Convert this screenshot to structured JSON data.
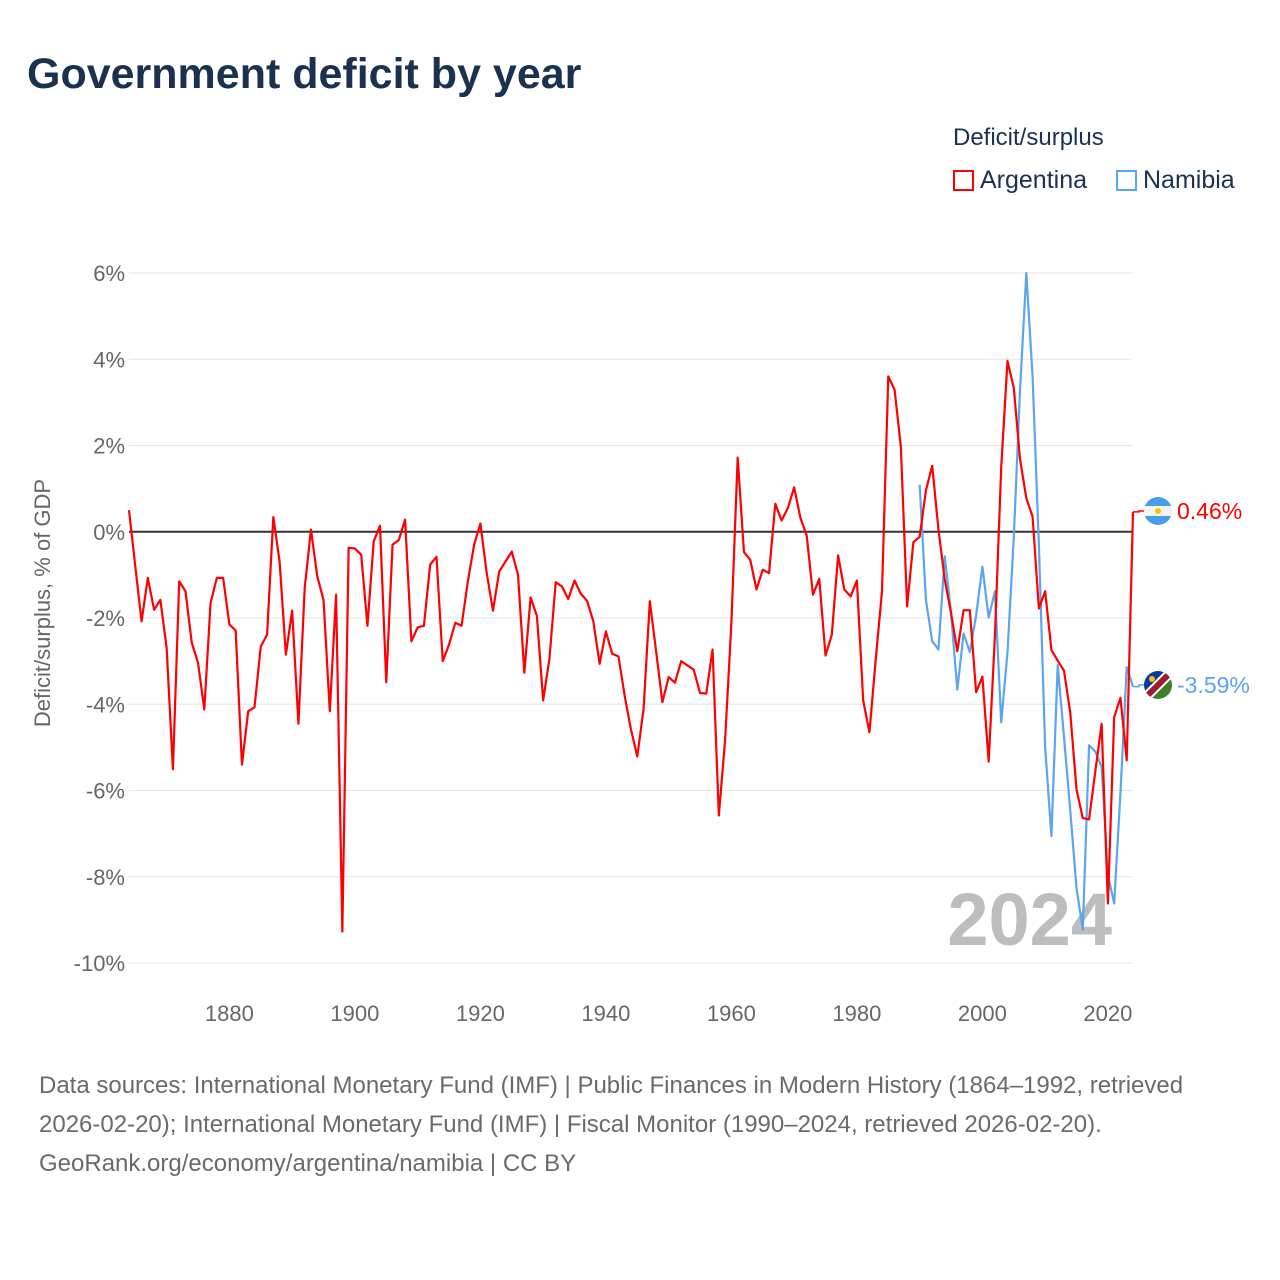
{
  "title": "Government deficit by year",
  "legend": {
    "title": "Deficit/surplus",
    "items": [
      {
        "label": "Argentina",
        "color": "#ff0000"
      },
      {
        "label": "Namibia",
        "color": "#5aa5ef"
      }
    ]
  },
  "chart_data": {
    "type": "line",
    "title": "Government deficit by year",
    "xlabel": "",
    "ylabel": "Deficit/surplus, % of GDP",
    "xlim": [
      1864,
      2024
    ],
    "ylim": [
      -10,
      6
    ],
    "yticks": [
      6,
      4,
      2,
      0,
      -2,
      -4,
      -6,
      -8,
      -10
    ],
    "ytick_labels": [
      "6%",
      "4%",
      "2%",
      "0%",
      "-2%",
      "-4%",
      "-6%",
      "-8%",
      "-10%"
    ],
    "xticks": [
      1880,
      1900,
      1920,
      1940,
      1960,
      1980,
      2000,
      2020
    ],
    "xtick_labels": [
      "1880",
      "1900",
      "1920",
      "1940",
      "1960",
      "1980",
      "2000",
      "2020"
    ],
    "grid": true,
    "legend_position": "top-right",
    "year_watermark": "2024",
    "series": [
      {
        "name": "Argentina",
        "color": "#ff0000",
        "start_year": 1864,
        "end_label": "0.46%",
        "values": [
          0.5,
          -0.8,
          -2.08,
          -1.07,
          -1.81,
          -1.58,
          -2.7,
          -5.51,
          -1.15,
          -1.38,
          -2.57,
          -3.04,
          -4.12,
          -1.65,
          -1.07,
          -1.07,
          -2.15,
          -2.29,
          -5.4,
          -4.16,
          -4.07,
          -2.66,
          -2.39,
          0.34,
          -0.69,
          -2.85,
          -1.83,
          -4.45,
          -1.3,
          0.05,
          -1.03,
          -1.58,
          -4.16,
          -1.46,
          -9.27,
          -0.37,
          -0.39,
          -0.53,
          -2.18,
          -0.22,
          0.14,
          -3.49,
          -0.3,
          -0.19,
          0.28,
          -2.54,
          -2.22,
          -2.18,
          -0.76,
          -0.58,
          -3.0,
          -2.62,
          -2.11,
          -2.18,
          -1.15,
          -0.3,
          0.19,
          -0.95,
          -1.83,
          -0.92,
          -0.69,
          -0.46,
          -1.0,
          -3.27,
          -1.52,
          -1.95,
          -3.91,
          -2.95,
          -1.17,
          -1.27,
          -1.56,
          -1.13,
          -1.44,
          -1.6,
          -2.08,
          -3.06,
          -2.31,
          -2.83,
          -2.89,
          -3.81,
          -4.59,
          -5.21,
          -4.12,
          -1.61,
          -2.77,
          -3.95,
          -3.37,
          -3.5,
          -3.0,
          -3.1,
          -3.2,
          -3.74,
          -3.75,
          -2.73,
          -6.58,
          -4.82,
          -2.11,
          1.72,
          -0.47,
          -0.65,
          -1.34,
          -0.88,
          -0.96,
          0.65,
          0.26,
          0.55,
          1.03,
          0.32,
          -0.09,
          -1.46,
          -1.09,
          -2.87,
          -2.39,
          -0.55,
          -1.34,
          -1.5,
          -1.13,
          -3.91,
          -4.65,
          -2.96,
          -1.38,
          3.6,
          3.3,
          1.98,
          -1.73,
          -0.24,
          -0.12,
          0.96,
          1.53,
          0.05,
          -1.11,
          -1.88,
          -2.77,
          -1.82,
          -1.82,
          -3.72,
          -3.36,
          -5.33,
          -2.4,
          1.5,
          3.96,
          3.34,
          1.68,
          0.78,
          0.35,
          -1.78,
          -1.38,
          -2.74,
          -2.99,
          -3.22,
          -4.19,
          -5.98,
          -6.64,
          -6.67,
          -5.55,
          -4.45,
          -8.62,
          -4.3,
          -3.85,
          -5.3,
          0.46
        ]
      },
      {
        "name": "Namibia",
        "color": "#5aa5ef",
        "start_year": 1990,
        "end_label": "-3.59%",
        "values": [
          1.09,
          -1.58,
          -2.54,
          -2.73,
          -0.57,
          -1.88,
          -3.66,
          -2.36,
          -2.79,
          -1.94,
          -0.81,
          -1.99,
          -1.38,
          -4.42,
          -2.79,
          -0.13,
          3.29,
          6.0,
          3.59,
          -0.3,
          -5.0,
          -7.06,
          -3.09,
          -4.75,
          -6.46,
          -8.27,
          -9.22,
          -4.95,
          -5.1,
          -5.45,
          -7.96,
          -8.62,
          -6.05,
          -3.14,
          -3.59
        ]
      }
    ]
  },
  "footer": {
    "sources": "Data sources: International Monetary Fund (IMF) | Public Finances in Modern History (1864–1992, retrieved 2026-02-20); International Monetary Fund (IMF) | Fiscal Monitor (1990–2024, retrieved 2026-02-20).",
    "credit": "GeoRank.org/economy/argentina/namibia | CC BY"
  }
}
